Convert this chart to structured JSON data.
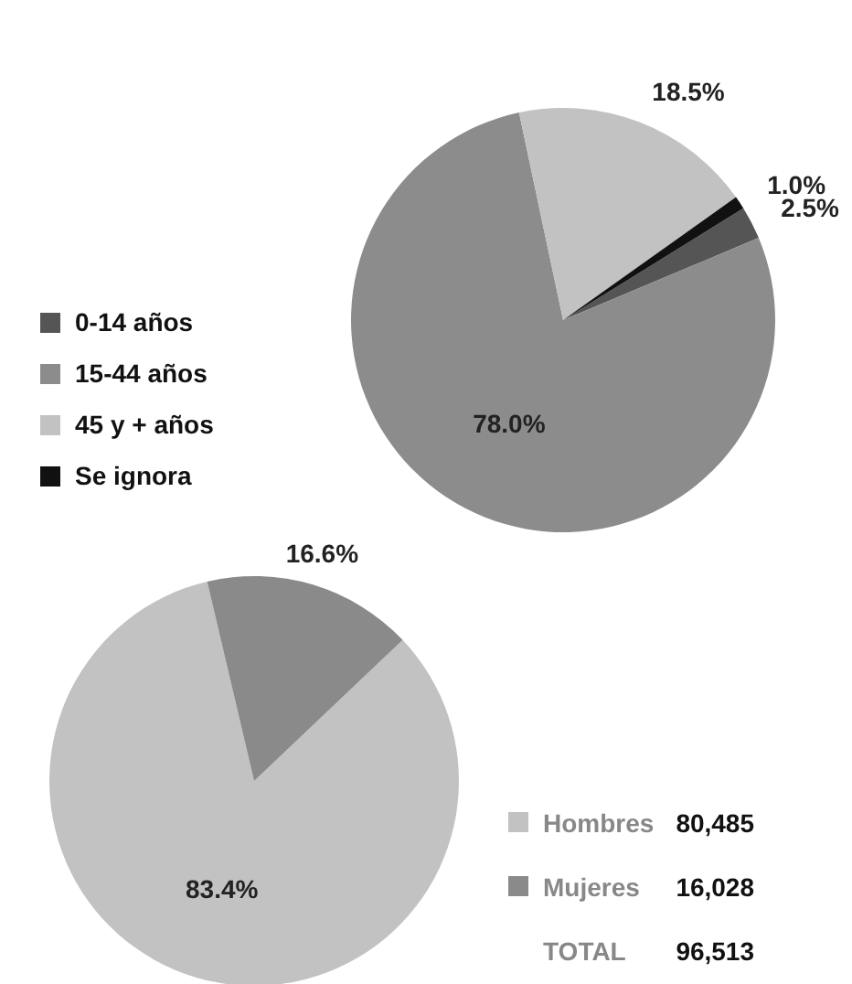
{
  "chart_data": [
    {
      "type": "pie",
      "categories": [
        "0-14 años",
        "15-44 años",
        "45 y + años",
        "Se ignora"
      ],
      "values": [
        2.5,
        78.0,
        18.5,
        1.0
      ],
      "colors": [
        "#555555",
        "#8c8c8c",
        "#c2c2c2",
        "#111111"
      ],
      "value_labels": [
        "2.5%",
        "78.0%",
        "18.5%",
        "1.0%"
      ],
      "legend": "left"
    },
    {
      "type": "pie",
      "categories": [
        "Hombres",
        "Mujeres"
      ],
      "values": [
        83.4,
        16.6
      ],
      "colors": [
        "#c2c2c2",
        "#8a8a8a"
      ],
      "value_labels": [
        "83.4%",
        "16.6%"
      ],
      "legend": "bottom right",
      "annotations": [
        "80,485",
        "16,028",
        "TOTAL"
      ],
      "totals": [
        "96,513"
      ]
    }
  ]
}
